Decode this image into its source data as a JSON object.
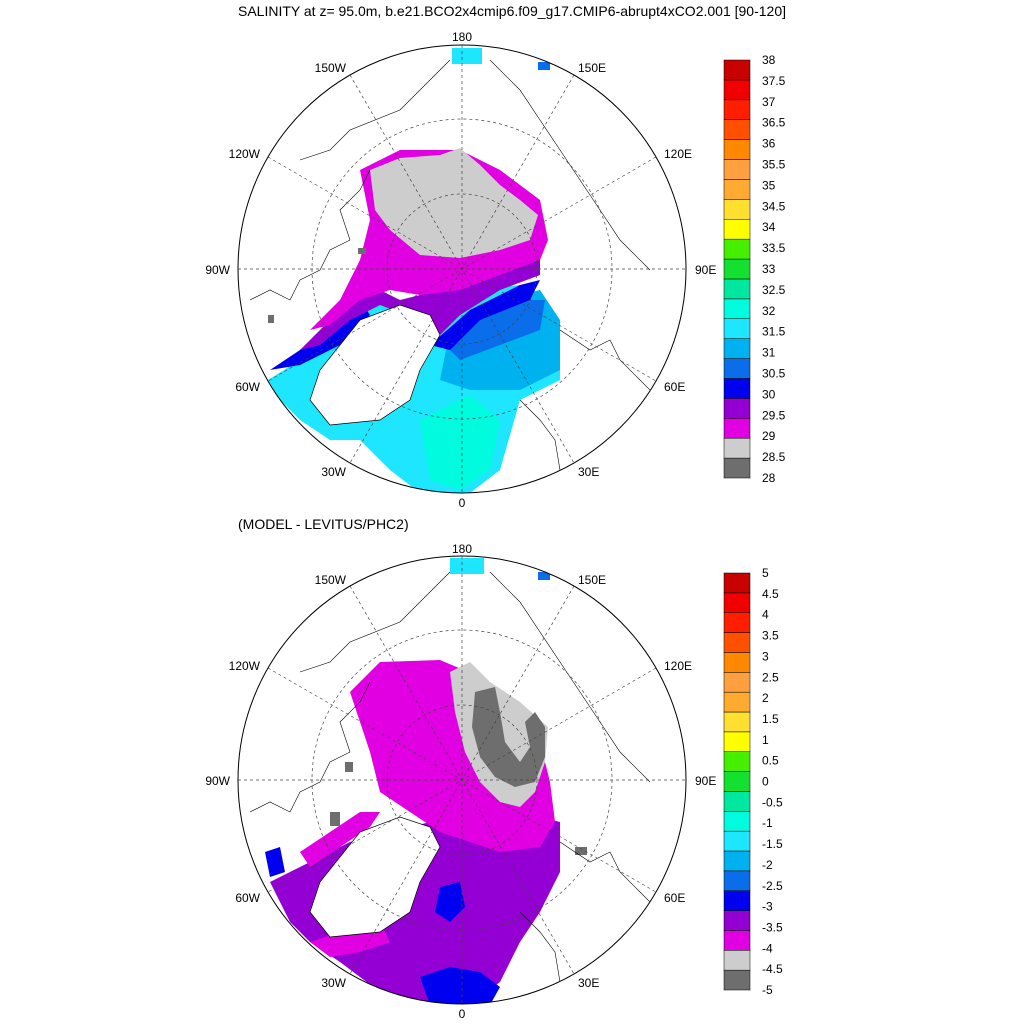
{
  "header": {
    "title": "SALINITY at z=  95.0m, b.e21.BCO2x4cmip6.f09_g17.CMIP6-abrupt4xCO2.001 [90-120]"
  },
  "bottom_panel": {
    "subtitle": "(MODEL - LEVITUS/PHC2)"
  },
  "longitude_labels": [
    "180",
    "150E",
    "120E",
    "90E",
    "60E",
    "30E",
    "0",
    "30W",
    "60W",
    "90W",
    "120W",
    "150W"
  ],
  "chart_data": [
    {
      "type": "heatmap",
      "name": "salinity",
      "levels": [
        28,
        28.5,
        29,
        29.5,
        30,
        30.5,
        31,
        31.5,
        32,
        32.5,
        33,
        33.5,
        34,
        34.5,
        35,
        35.5,
        36,
        36.5,
        37,
        37.5,
        38
      ],
      "level_labels": [
        "28",
        "28.5",
        "29",
        "29.5",
        "30",
        "30.5",
        "31",
        "31.5",
        "32",
        "32.5",
        "33",
        "33.5",
        "34",
        "34.5",
        "35",
        "35.5",
        "36",
        "36.5",
        "37",
        "37.5",
        "38"
      ],
      "colors": [
        "#6e6e6e",
        "#cdcdcd",
        "#e100e1",
        "#9400d3",
        "#0000f0",
        "#0a6eeb",
        "#00b1f0",
        "#1ee6ff",
        "#00fbdf",
        "#00e8a0",
        "#14e12f",
        "#44f000",
        "#ffff00",
        "#ffe030",
        "#ffaa30",
        "#ffa040",
        "#ff8800",
        "#ff5000",
        "#ff1e00",
        "#f00000",
        "#c80000"
      ]
    },
    {
      "type": "heatmap",
      "name": "model-minus-levitus",
      "levels": [
        -5,
        -4.5,
        -4,
        -3.5,
        -3,
        -2.5,
        -2,
        -1.5,
        -1,
        -0.5,
        0,
        0.5,
        1,
        1.5,
        2,
        2.5,
        3,
        3.5,
        4,
        4.5,
        5
      ],
      "level_labels": [
        "-5",
        "-4.5",
        "-4",
        "-3.5",
        "-3",
        "-2.5",
        "-2",
        "-1.5",
        "-1",
        "-0.5",
        "0",
        "0.5",
        "1",
        "1.5",
        "2",
        "2.5",
        "3",
        "3.5",
        "4",
        "4.5",
        "5"
      ],
      "colors": [
        "#6e6e6e",
        "#cdcdcd",
        "#e100e1",
        "#9400d3",
        "#0000f0",
        "#0a6eeb",
        "#00b1f0",
        "#1ee6ff",
        "#00fbdf",
        "#00e8a0",
        "#14e12f",
        "#44f000",
        "#ffff00",
        "#ffe030",
        "#ffaa30",
        "#ffa040",
        "#ff8800",
        "#ff5000",
        "#ff1e00",
        "#f00000",
        "#c80000"
      ]
    }
  ]
}
